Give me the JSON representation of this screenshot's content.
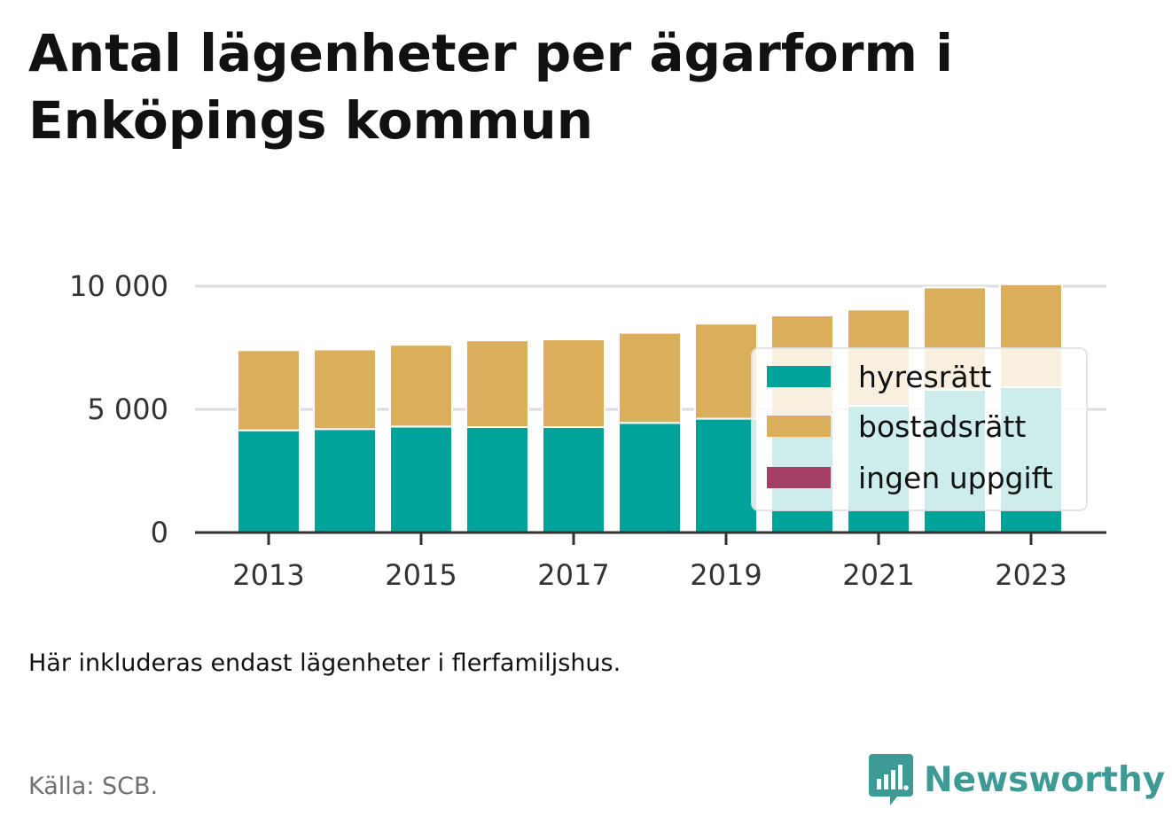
{
  "title": "Antal lägenheter per ägarform i Enköpings kommun",
  "note": "Här inkluderas endast lägenheter i flerfamiljshus.",
  "source": "Källa: SCB.",
  "brand": {
    "name": "Newsworthy",
    "icon": "newsworthy-logo-icon",
    "color": "#3d9a94"
  },
  "colors": {
    "hyresratt": "#00a39a",
    "bostadsratt": "#dbae5c",
    "ingen_uppgift": "#a63f65",
    "gridline": "#dddddd",
    "axis": "#333333"
  },
  "chart_data": {
    "type": "bar",
    "stacked": true,
    "title": "",
    "xlabel": "",
    "ylabel": "",
    "categories": [
      2013,
      2014,
      2015,
      2016,
      2017,
      2018,
      2019,
      2020,
      2021,
      2022,
      2023
    ],
    "x_tick_labels": [
      "2013",
      "2015",
      "2017",
      "2019",
      "2021",
      "2023"
    ],
    "y_ticks": [
      0,
      5000,
      10000
    ],
    "y_tick_labels": [
      "0",
      "5 000",
      "10 000"
    ],
    "ylim": [
      0,
      10000
    ],
    "grid": "horizontal",
    "legend_position": "right",
    "series": [
      {
        "name": "hyresrätt",
        "color": "#00a39a",
        "values": [
          4150,
          4200,
          4300,
          4280,
          4280,
          4450,
          4620,
          4750,
          5150,
          5800,
          5900
        ]
      },
      {
        "name": "bostadsrätt",
        "color": "#dbae5c",
        "values": [
          3250,
          3230,
          3320,
          3520,
          3560,
          3660,
          3860,
          4060,
          3900,
          4150,
          4180
        ]
      },
      {
        "name": "ingen uppgift",
        "color": "#a63f65",
        "values": [
          0,
          0,
          0,
          0,
          0,
          0,
          0,
          0,
          0,
          0,
          0
        ]
      }
    ]
  }
}
